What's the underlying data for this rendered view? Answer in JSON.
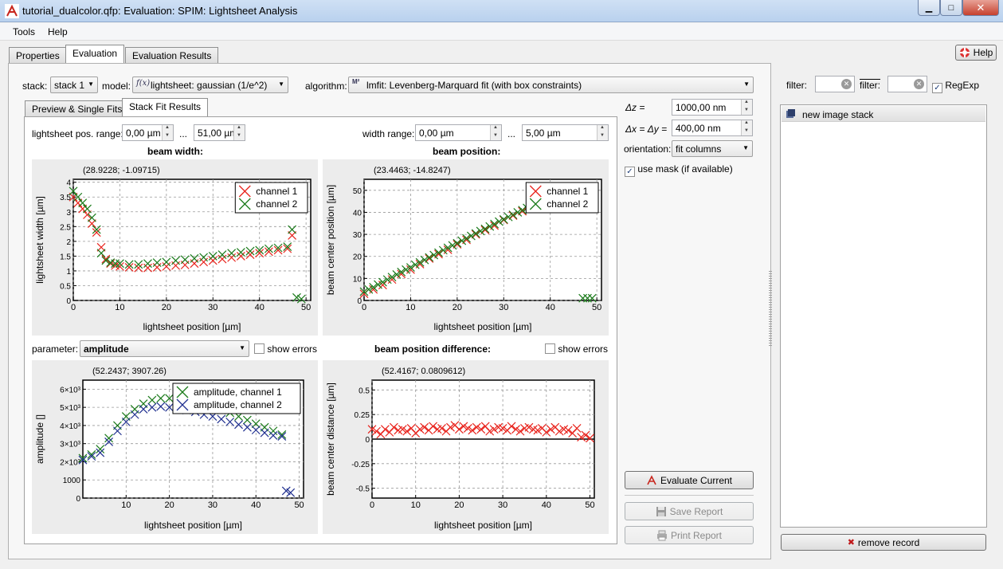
{
  "window": {
    "title": "tutorial_dualcolor.qfp: Evaluation: SPIM: Lightsheet Analysis"
  },
  "menu": {
    "tools": "Tools",
    "help": "Help"
  },
  "main_tabs": [
    "Properties",
    "Evaluation",
    "Evaluation Results"
  ],
  "help_button": "Help",
  "controls": {
    "stack_label": "stack:",
    "stack_value": "stack 1",
    "model_label": "model:",
    "model_value": "lightsheet: gaussian (1/e^2)",
    "algorithm_label": "algorithm:",
    "algorithm_value": "lmfit: Levenberg-Marquard fit (with box constraints)"
  },
  "inner_tabs": [
    "Preview & Single Fits",
    "Stack Fit Results"
  ],
  "ranges": {
    "pos_label": "lightsheet pos. range:",
    "pos_min": "0,00 µm",
    "dots": "...",
    "pos_max": "51,00 µm",
    "width_label": "width range:",
    "width_min": "0,00 µm",
    "width_max": "5,00 µm"
  },
  "param": {
    "label": "parameter:",
    "value": "amplitude",
    "show_errors": "show errors"
  },
  "right_panel": {
    "dz_label": "Δz =",
    "dz_value": "1000,00 nm",
    "dxy_label": "Δx = Δy =",
    "dxy_value": "400,00 nm",
    "orientation_label": "orientation:",
    "orientation_value": "fit columns",
    "use_mask": "use mask (if available)",
    "evaluate": "Evaluate Current",
    "save": "Save Report",
    "print": "Print Report"
  },
  "records": {
    "filter_label": "filter:",
    "filter2_label": "filter:",
    "regexp": "RegExp",
    "items": [
      "new image stack"
    ],
    "remove": "remove record"
  },
  "colors": {
    "red": "#e8231c",
    "green": "#1a7a1a",
    "blue": "#1f2f8f",
    "accent": "#3366cc"
  },
  "chart_data": [
    {
      "type": "scatter",
      "title": "beam width:",
      "coord_readout": "(28.9228; -1.09715)",
      "xlabel": "lightsheet position [µm]",
      "ylabel": "lightsheet width [µm]",
      "xlim": [
        0,
        51
      ],
      "ylim": [
        0,
        4.1
      ],
      "xticks": [
        0,
        10,
        20,
        30,
        40,
        50
      ],
      "yticks": [
        0,
        0.5,
        1,
        1.5,
        2,
        2.5,
        3,
        3.5,
        4
      ],
      "legend": "top-right",
      "series": [
        {
          "name": "channel 1",
          "color": "#e8231c",
          "x": [
            0,
            1,
            2,
            3,
            4,
            5,
            6,
            7,
            8,
            9,
            10,
            12,
            14,
            16,
            18,
            20,
            22,
            24,
            26,
            28,
            30,
            32,
            34,
            36,
            38,
            40,
            42,
            44,
            46,
            47
          ],
          "y": [
            3.5,
            3.3,
            3.1,
            2.9,
            2.6,
            2.3,
            1.8,
            1.4,
            1.25,
            1.18,
            1.15,
            1.12,
            1.1,
            1.1,
            1.12,
            1.15,
            1.18,
            1.2,
            1.25,
            1.3,
            1.35,
            1.4,
            1.45,
            1.5,
            1.55,
            1.6,
            1.65,
            1.7,
            1.75,
            2.2
          ]
        },
        {
          "name": "channel 2",
          "color": "#1a7a1a",
          "x": [
            0,
            1,
            2,
            3,
            4,
            5,
            6,
            7,
            8,
            9,
            10,
            12,
            14,
            16,
            18,
            20,
            22,
            24,
            26,
            28,
            30,
            32,
            34,
            36,
            38,
            40,
            42,
            44,
            46,
            47,
            48,
            49
          ],
          "y": [
            3.7,
            3.5,
            3.3,
            3.1,
            2.8,
            2.4,
            1.6,
            1.35,
            1.28,
            1.25,
            1.25,
            1.22,
            1.22,
            1.25,
            1.28,
            1.3,
            1.35,
            1.38,
            1.42,
            1.46,
            1.5,
            1.55,
            1.6,
            1.63,
            1.67,
            1.7,
            1.75,
            1.78,
            1.82,
            2.4,
            0.1,
            0.05
          ]
        }
      ]
    },
    {
      "type": "scatter",
      "title": "beam position:",
      "coord_readout": "(23.4463; -14.8247)",
      "xlabel": "lightsheet position [µm]",
      "ylabel": "beam center position [µm]",
      "xlim": [
        0,
        51
      ],
      "ylim": [
        0,
        55
      ],
      "xticks": [
        0,
        10,
        20,
        30,
        40,
        50
      ],
      "yticks": [
        0,
        10,
        20,
        30,
        40,
        50
      ],
      "legend": "top-right",
      "series": [
        {
          "name": "channel 1",
          "color": "#e8231c",
          "x": [
            0,
            2,
            4,
            6,
            8,
            10,
            12,
            14,
            16,
            18,
            20,
            22,
            24,
            26,
            28,
            30,
            32,
            34,
            36,
            38,
            40
          ],
          "y": [
            3,
            5,
            7,
            9.5,
            12,
            14,
            16.5,
            19,
            21,
            23,
            25.5,
            27.5,
            30,
            32,
            34,
            36.5,
            38.5,
            40.5,
            42.5,
            44,
            45
          ]
        },
        {
          "name": "channel 2",
          "color": "#1a7a1a",
          "x": [
            0,
            1,
            2,
            3,
            4,
            5,
            6,
            7,
            8,
            9,
            10,
            11,
            12,
            13,
            14,
            15,
            16,
            17,
            18,
            19,
            20,
            21,
            22,
            23,
            24,
            25,
            26,
            27,
            28,
            29,
            30,
            31,
            32,
            33,
            34,
            35,
            36,
            37,
            38,
            39,
            40,
            47,
            48,
            49
          ],
          "y": [
            4,
            5,
            6,
            7.2,
            8.3,
            9.5,
            10.6,
            11.8,
            12.9,
            14,
            15,
            16.2,
            17.3,
            18.4,
            19.5,
            20.6,
            21.7,
            22.8,
            23.9,
            25,
            26,
            27.1,
            28.2,
            29.3,
            30.4,
            31.5,
            32.5,
            33.6,
            34.7,
            35.8,
            36.8,
            37.9,
            38.9,
            40,
            41,
            42,
            43,
            44,
            45,
            46,
            47,
            1,
            1,
            1
          ]
        }
      ]
    },
    {
      "type": "scatter",
      "title": "",
      "coord_readout": "(52.2437; 3907.26)",
      "xlabel": "lightsheet position [µm]",
      "ylabel": "amplitude []",
      "xlim": [
        0,
        51
      ],
      "ylim": [
        0,
        6500
      ],
      "xticks": [
        10,
        20,
        30,
        40,
        50
      ],
      "yticks": [
        0,
        1000,
        2000,
        3000,
        4000,
        5000,
        6000
      ],
      "ytick_labels": [
        "0",
        "1000",
        "2×10³",
        "3×10³",
        "4×10³",
        "5×10³",
        "6×10³"
      ],
      "legend": "top-right",
      "series": [
        {
          "name": "amplitude, channel 1",
          "color": "#1a7a1a",
          "x": [
            0,
            2,
            4,
            6,
            8,
            10,
            12,
            14,
            16,
            18,
            20,
            22,
            24,
            26,
            28,
            30,
            32,
            34,
            36,
            38,
            40,
            42,
            44,
            46
          ],
          "y": [
            2200,
            2400,
            2700,
            3300,
            4000,
            4500,
            4900,
            5200,
            5400,
            5500,
            5500,
            5450,
            5350,
            5250,
            5150,
            5000,
            4850,
            4700,
            4500,
            4300,
            4100,
            3900,
            3700,
            3500
          ]
        },
        {
          "name": "amplitude, channel 2",
          "color": "#1f2f8f",
          "x": [
            0,
            2,
            4,
            6,
            8,
            10,
            12,
            14,
            16,
            18,
            20,
            22,
            24,
            26,
            28,
            30,
            32,
            34,
            36,
            38,
            40,
            42,
            44,
            46,
            47,
            48
          ],
          "y": [
            2100,
            2300,
            2500,
            3100,
            3700,
            4200,
            4600,
            4900,
            5000,
            5050,
            5000,
            4950,
            4850,
            4750,
            4600,
            4500,
            4350,
            4200,
            4050,
            3900,
            3750,
            3600,
            3450,
            3400,
            400,
            300
          ]
        }
      ]
    },
    {
      "type": "scatter",
      "title": "beam position difference:",
      "coord_readout": "(52.4167; 0.0809612)",
      "xlabel": "lightsheet position [µm]",
      "ylabel": "beam center distance [µm]",
      "xlim": [
        0,
        51
      ],
      "ylim": [
        -0.6,
        0.6
      ],
      "xticks": [
        0,
        10,
        20,
        30,
        40,
        50
      ],
      "yticks": [
        -0.5,
        -0.25,
        0,
        0.25,
        0.5
      ],
      "ytick_labels": [
        "-0.5",
        "-0.25",
        "0",
        "0.25",
        "0.5"
      ],
      "show_errors": "show errors",
      "series": [
        {
          "name": "",
          "color": "#e8231c",
          "x": [
            0,
            1,
            2,
            3,
            4,
            5,
            6,
            7,
            8,
            9,
            10,
            11,
            12,
            13,
            14,
            15,
            16,
            17,
            18,
            19,
            20,
            21,
            22,
            23,
            24,
            25,
            26,
            27,
            28,
            29,
            30,
            31,
            32,
            33,
            34,
            35,
            36,
            37,
            38,
            39,
            40,
            41,
            42,
            43,
            44,
            45,
            46,
            47,
            48,
            49,
            50
          ],
          "y": [
            0.1,
            0.08,
            0.05,
            0.1,
            0.07,
            0.12,
            0.09,
            0.1,
            0.08,
            0.11,
            0.06,
            0.1,
            0.12,
            0.09,
            0.13,
            0.1,
            0.11,
            0.08,
            0.12,
            0.14,
            0.1,
            0.13,
            0.11,
            0.09,
            0.12,
            0.1,
            0.13,
            0.08,
            0.1,
            0.12,
            0.11,
            0.09,
            0.13,
            0.1,
            0.08,
            0.11,
            0.12,
            0.1,
            0.09,
            0.11,
            0.07,
            0.1,
            0.12,
            0.08,
            0.1,
            0.09,
            0.06,
            0.11,
            0.02,
            0.04,
            0.01
          ]
        }
      ]
    }
  ]
}
